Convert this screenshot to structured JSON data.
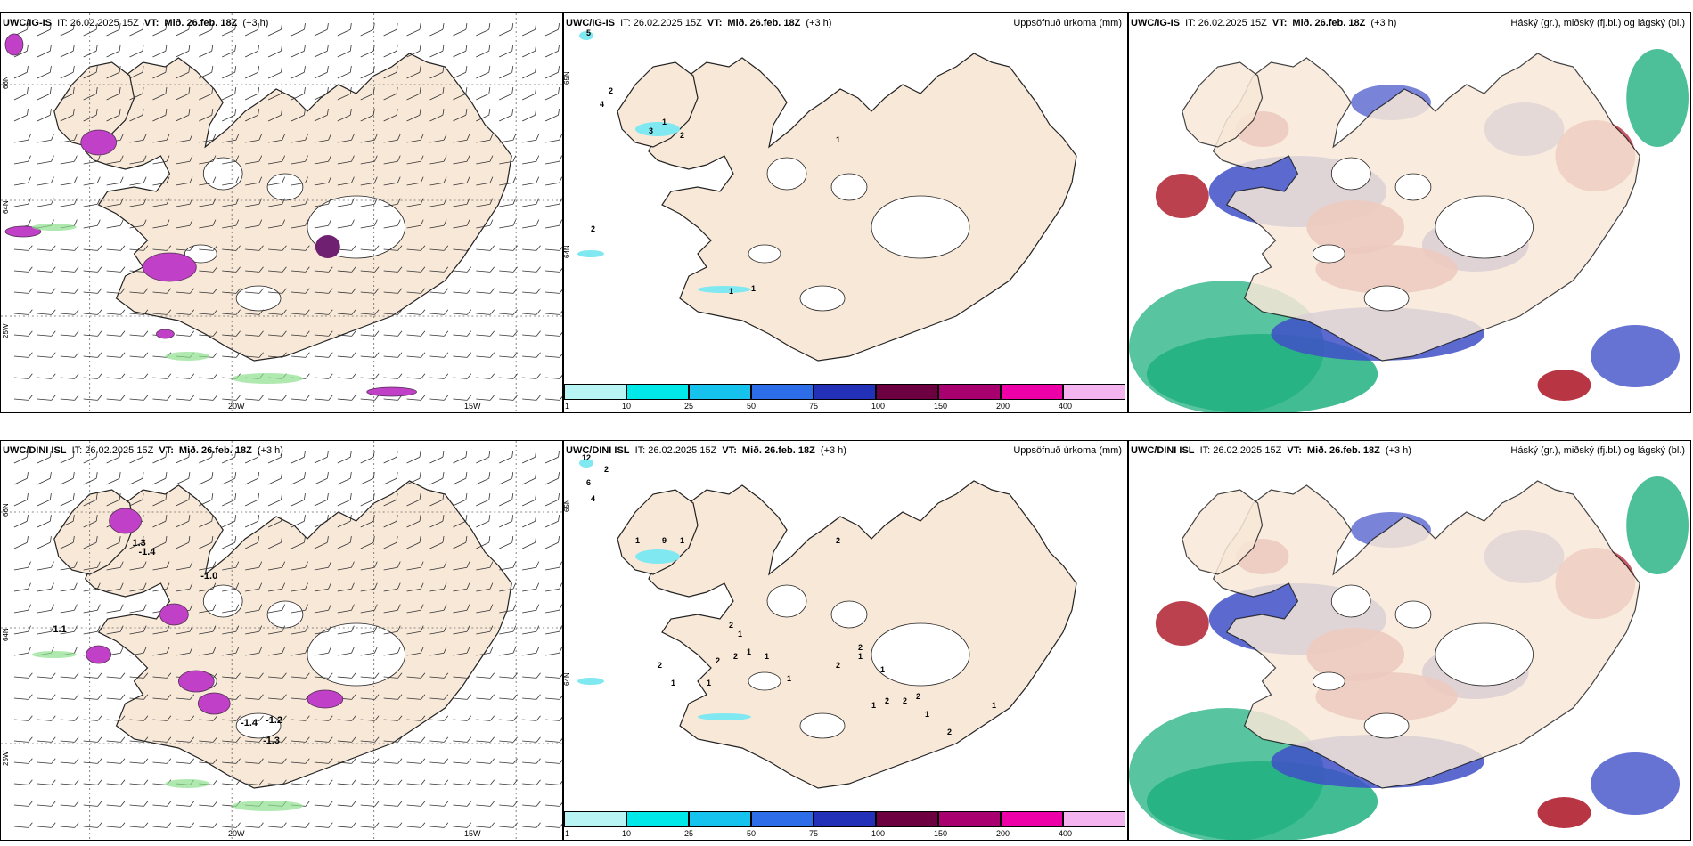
{
  "panels": [
    {
      "id": "p1",
      "title_prefix": "UWC/IG-IS",
      "it": "IT: 26.02.2025 15Z",
      "vt_label": "VT:",
      "vt": "Mið. 26.feb. 18Z",
      "lead": "(+3 h)",
      "right": "",
      "lon_labels": [
        "20W",
        "15W"
      ],
      "lat_labels": [
        "66N",
        "64N",
        "25W"
      ],
      "type": "wind"
    },
    {
      "id": "p2",
      "title_prefix": "UWC/IG-IS",
      "it": "IT: 26.02.2025 15Z",
      "vt_label": "VT:",
      "vt": "Mið. 26.feb. 18Z",
      "lead": "(+3 h)",
      "right": "Uppsöfnuð úrkoma (mm)",
      "lat_labels": [
        "65N",
        "64N"
      ],
      "type": "precip",
      "precip_labels": [
        "5",
        "2",
        "4",
        "3",
        "1",
        "2",
        "1",
        "2",
        "1",
        "1"
      ]
    },
    {
      "id": "p3",
      "title_prefix": "UWC/IG-IS",
      "it": "IT: 26.02.2025 15Z",
      "vt_label": "VT:",
      "vt": "Mið. 26.feb. 18Z",
      "lead": "(+3 h)",
      "right": "Háský (gr.), miðský (fj.bl.) og lágský (bl.)",
      "type": "cloud"
    },
    {
      "id": "p4",
      "title_prefix": "UWC/DINI ISL",
      "it": "IT: 26.02.2025 15Z",
      "vt_label": "VT:",
      "vt": "Mið. 26.feb. 18Z",
      "lead": "(+3 h)",
      "right": "",
      "lon_labels": [
        "20W",
        "15W"
      ],
      "lat_labels": [
        "66N",
        "64N",
        "25W"
      ],
      "type": "wind",
      "temp_labels": [
        "-1.0",
        "-1.1",
        "-1.4",
        "-1.2",
        "-1.3",
        "1.3",
        "-1.4"
      ]
    },
    {
      "id": "p5",
      "title_prefix": "UWC/DINI ISL",
      "it": "IT: 26.02.2025 15Z",
      "vt_label": "VT:",
      "vt": "Mið. 26.feb. 18Z",
      "lead": "(+3 h)",
      "right": "Uppsöfnuð úrkoma (mm)",
      "lat_labels": [
        "65N",
        "64N"
      ],
      "type": "precip",
      "precip_labels": [
        "12",
        "2",
        "6",
        "4",
        "1",
        "9",
        "1",
        "2",
        "2",
        "1",
        "2",
        "1",
        "2",
        "2",
        "1",
        "1",
        "1",
        "1",
        "2",
        "2",
        "1",
        "1",
        "1",
        "2",
        "2",
        "2",
        "1",
        "2",
        "1"
      ]
    },
    {
      "id": "p6",
      "title_prefix": "UWC/DINI ISL",
      "it": "IT: 26.02.2025 15Z",
      "vt_label": "VT:",
      "vt": "Mið. 26.feb. 18Z",
      "lead": "(+3 h)",
      "right": "Háský (gr.), miðský (fj.bl.) og lágský (bl.)",
      "type": "cloud"
    }
  ],
  "precip_legend": {
    "ticks": [
      "1",
      "10",
      "25",
      "50",
      "75",
      "100",
      "150",
      "200",
      "400"
    ],
    "colors": [
      "#b8f4f4",
      "#00e8e8",
      "#16c2ee",
      "#2d6ee8",
      "#2330b8",
      "#6d0040",
      "#a8006e",
      "#ee00a8",
      "#f4b4f0"
    ]
  },
  "colors": {
    "land": "#f8e8d8",
    "land_dark": "#f2dcc6",
    "magenta": "#c040c8",
    "dark_purple": "#702070",
    "cloud_blue": "#4050c8",
    "cloud_red": "#b02030",
    "cloud_green": "#20b080"
  }
}
